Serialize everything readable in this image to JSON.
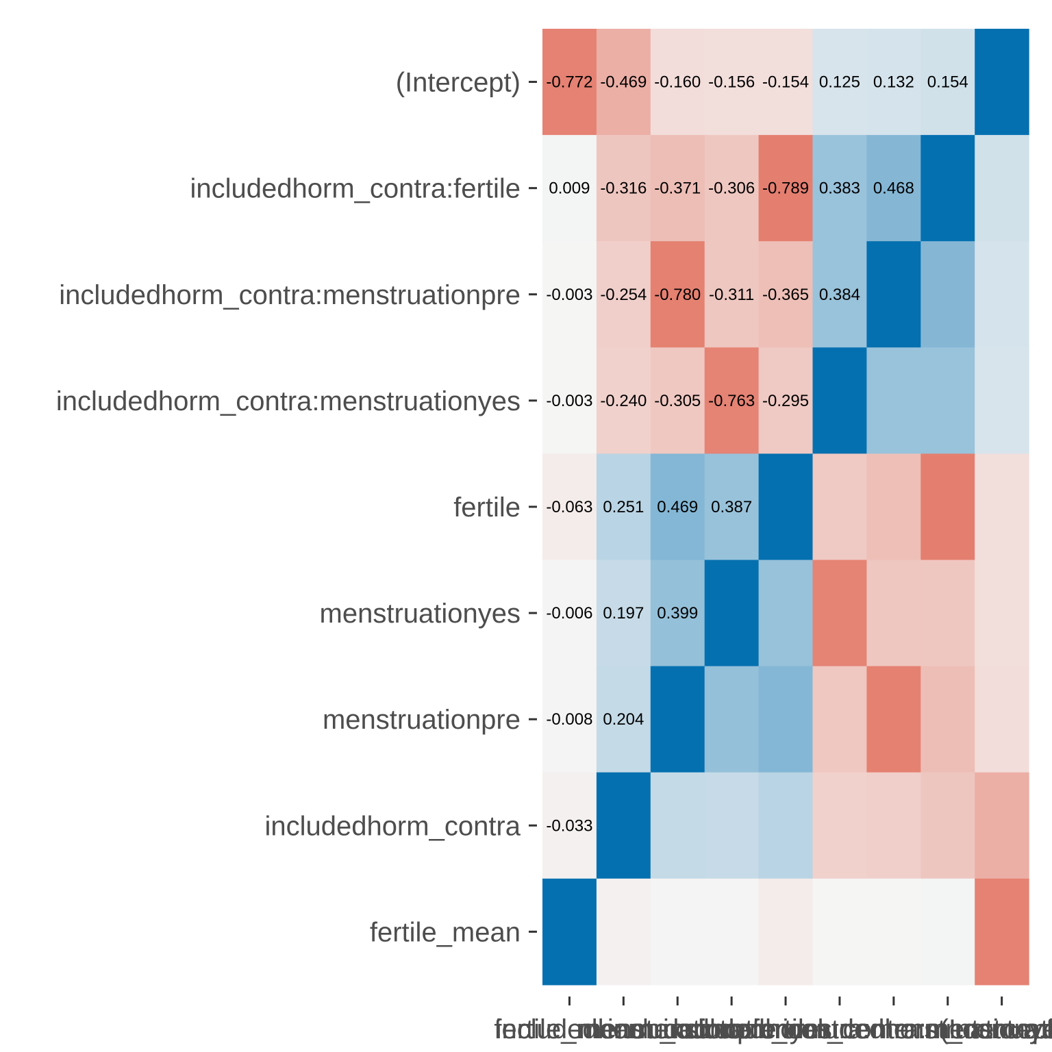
{
  "chart_data": {
    "type": "heatmap",
    "title": "",
    "xlabel": "",
    "ylabel": "",
    "rows": [
      "(Intercept)",
      "includedhorm_contra:fertile",
      "includedhorm_contra:menstruationpre",
      "includedhorm_contra:menstruationyes",
      "fertile",
      "menstruationyes",
      "menstruationpre",
      "includedhorm_contra",
      "fertile_mean"
    ],
    "columns": [
      "fertile_mean",
      "includedhorm_contra",
      "menstruationpre",
      "menstruationyes",
      "fertile",
      "includedhorm_contra:menstruationyes",
      "includedhorm_contra:menstruationpre",
      "includedhorm_contra:fertile",
      "(Intercept)"
    ],
    "values": [
      [
        -0.772,
        -0.469,
        -0.16,
        -0.156,
        -0.154,
        0.125,
        0.132,
        0.154,
        1
      ],
      [
        0.009,
        -0.316,
        -0.371,
        -0.306,
        -0.789,
        0.383,
        0.468,
        1,
        0.154
      ],
      [
        -0.003,
        -0.254,
        -0.78,
        -0.311,
        -0.365,
        0.384,
        1,
        0.468,
        0.132
      ],
      [
        -0.003,
        -0.24,
        -0.305,
        -0.763,
        -0.295,
        1,
        0.384,
        0.383,
        0.125
      ],
      [
        -0.063,
        0.251,
        0.469,
        0.387,
        1,
        -0.295,
        -0.365,
        -0.789,
        -0.154
      ],
      [
        -0.006,
        0.197,
        0.399,
        1,
        0.387,
        -0.763,
        -0.311,
        -0.306,
        -0.156
      ],
      [
        -0.008,
        0.204,
        1,
        0.399,
        0.469,
        -0.305,
        -0.78,
        -0.371,
        -0.16
      ],
      [
        -0.033,
        1,
        0.204,
        0.197,
        0.251,
        -0.24,
        -0.254,
        -0.316,
        -0.469
      ],
      [
        1,
        -0.033,
        -0.008,
        -0.006,
        -0.063,
        -0.003,
        -0.003,
        0.009,
        -0.772
      ]
    ],
    "labeled_cells": "lower triangle (cells left of the diagonal) print values with 3 decimals",
    "color_scale": {
      "negative": "#e0604c",
      "neutral": "#f5f5f5",
      "positive": "#0570b0"
    },
    "legend": "none",
    "grid": false
  }
}
